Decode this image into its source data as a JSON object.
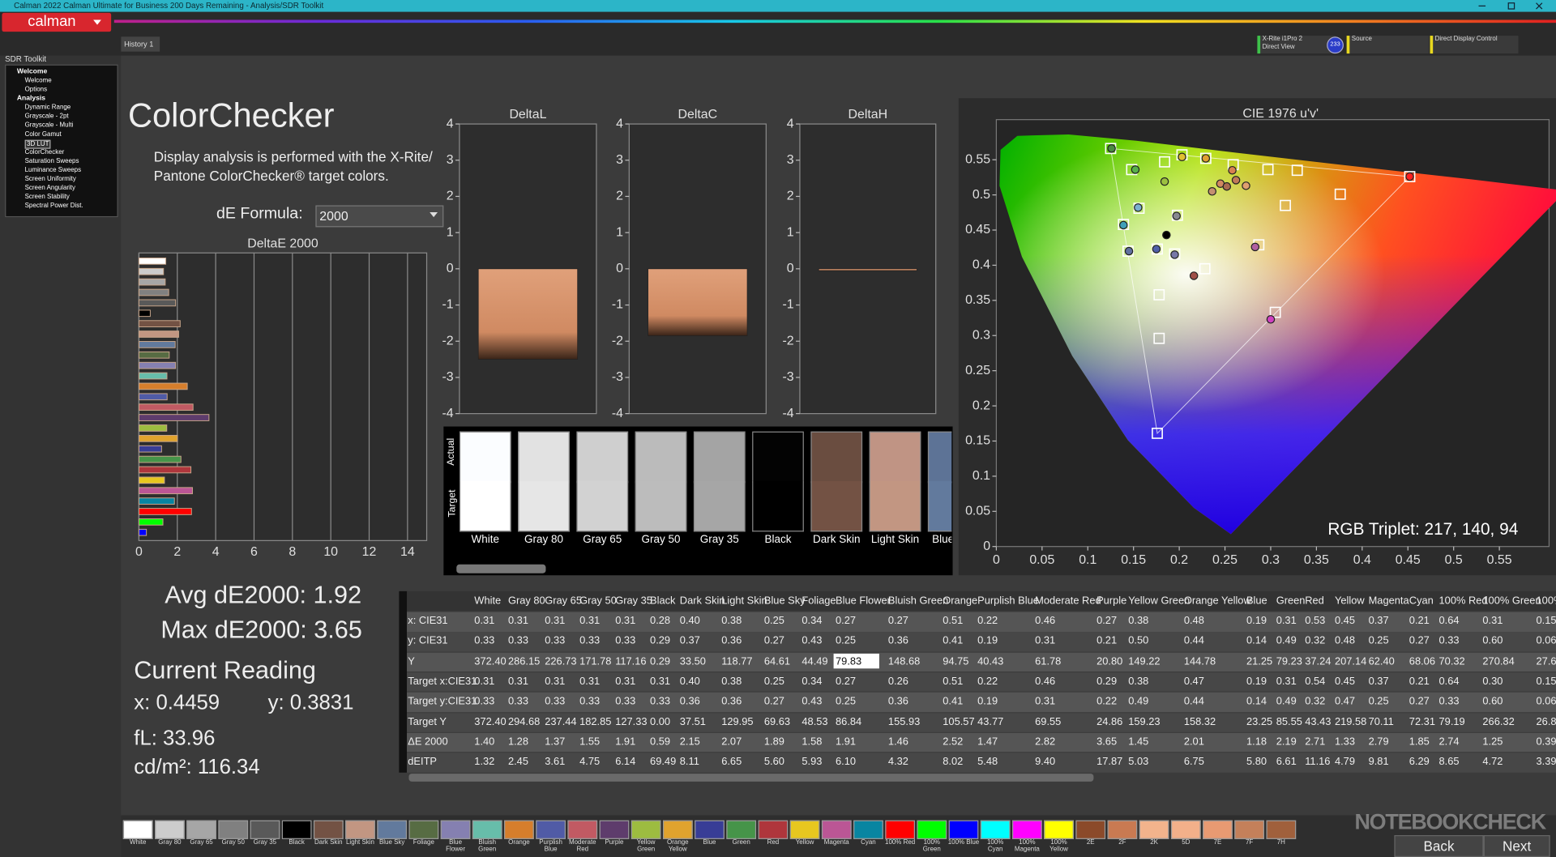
{
  "window": {
    "title": "Calman 2022 Calman Ultimate for Business 200 Days Remaining - Analysis/SDR Toolkit"
  },
  "toolbar": {
    "logo": "calman",
    "tab": "History 1",
    "badge": "233",
    "devices": [
      {
        "name": "X-Rite i1Pro 2",
        "sub": "Direct View",
        "color": "#3ec24a"
      },
      {
        "name": "Source",
        "color": "#e8d820"
      },
      {
        "name": "Direct Display Control",
        "color": "#e8d820"
      }
    ]
  },
  "sidebar": {
    "title": "SDR Toolkit",
    "selected_item": 6,
    "groups": [
      {
        "label": "Welcome",
        "items": [
          "Welcome",
          "Options"
        ]
      },
      {
        "label": "Analysis",
        "items": [
          "Dynamic Range",
          "Grayscale - 2pt",
          "Grayscale - Multi",
          "Color Gamut",
          "3D LUT",
          "ColorChecker",
          "Saturation Sweeps",
          "Luminance Sweeps",
          "Screen Uniformity",
          "Screen Angularity",
          "Screen Stability",
          "Spectral Power Dist."
        ]
      }
    ]
  },
  "page": {
    "heading": "ColorChecker",
    "description": [
      "Display analysis is performed with the X-Rite/",
      "Pantone ColorChecker® target colors."
    ],
    "formula_label": "dE Formula:",
    "formula_value": "2000"
  },
  "stats": {
    "avg": "Avg dE2000: 1.92",
    "max": "Max dE2000: 3.65",
    "current": "Current Reading",
    "x": "x: 0.4459",
    "y": "y: 0.3831",
    "fl": "fL: 33.96",
    "cdm2": "cd/m²: 116.34",
    "rgb": "RGB Triplet: 217, 140, 94"
  },
  "swatch_panel": {
    "actual_label": "Actual",
    "target_label": "Target",
    "swatches": [
      {
        "name": "White",
        "actual": "#fbfdff",
        "target": "#ffffff"
      },
      {
        "name": "Gray 80",
        "actual": "#e2e2e2",
        "target": "#e6e6e6"
      },
      {
        "name": "Gray 65",
        "actual": "#cfcfcf",
        "target": "#d2d2d2"
      },
      {
        "name": "Gray 50",
        "actual": "#bbbbbb",
        "target": "#bcbcbc"
      },
      {
        "name": "Gray 35",
        "actual": "#a4a4a4",
        "target": "#a6a6a6"
      },
      {
        "name": "Black",
        "actual": "#030303",
        "target": "#000000"
      },
      {
        "name": "Dark Skin",
        "actual": "#6a4d40",
        "target": "#735244"
      },
      {
        "name": "Light Skin",
        "actual": "#c09484",
        "target": "#c29682"
      },
      {
        "name": "Blue Sky",
        "actual": "#5d7396",
        "target": "#627a9d"
      }
    ]
  },
  "table": {
    "columns": [
      "White",
      "Gray 80",
      "Gray 65",
      "Gray 50",
      "Gray 35",
      "Black",
      "Dark Skin",
      "Light Skin",
      "Blue Sky",
      "Foliage",
      "Blue Flower",
      "Bluish Green",
      "Orange",
      "Purplish Blue",
      "Moderate Red",
      "Purple",
      "Yellow Green",
      "Orange Yellow",
      "Blue",
      "Green",
      "Red",
      "Yellow",
      "Magenta",
      "Cyan",
      "100% Red",
      "100% Green",
      "100%"
    ],
    "highlight": {
      "row": 2,
      "column": 10
    },
    "rows": [
      {
        "label": "x: CIE31",
        "cells": [
          "0.31",
          "0.31",
          "0.31",
          "0.31",
          "0.31",
          "0.28",
          "0.40",
          "0.38",
          "0.25",
          "0.34",
          "0.27",
          "0.27",
          "0.51",
          "0.22",
          "0.46",
          "0.27",
          "0.38",
          "0.48",
          "0.19",
          "0.31",
          "0.53",
          "0.45",
          "0.37",
          "0.21",
          "0.64",
          "0.31",
          "0.15"
        ]
      },
      {
        "label": "y: CIE31",
        "cells": [
          "0.33",
          "0.33",
          "0.33",
          "0.33",
          "0.33",
          "0.29",
          "0.37",
          "0.36",
          "0.27",
          "0.43",
          "0.25",
          "0.36",
          "0.41",
          "0.19",
          "0.31",
          "0.21",
          "0.50",
          "0.44",
          "0.14",
          "0.49",
          "0.32",
          "0.48",
          "0.25",
          "0.27",
          "0.33",
          "0.60",
          "0.06"
        ]
      },
      {
        "label": "Y",
        "cells": [
          "372.40",
          "286.15",
          "226.73",
          "171.78",
          "117.16",
          "0.29",
          "33.50",
          "118.77",
          "64.61",
          "44.49",
          "79.83",
          "148.68",
          "94.75",
          "40.43",
          "61.78",
          "20.80",
          "149.22",
          "144.78",
          "21.25",
          "79.23",
          "37.24",
          "207.14",
          "62.40",
          "68.06",
          "70.32",
          "270.84",
          "27.6"
        ]
      },
      {
        "label": "Target x:CIE31",
        "cells": [
          "0.31",
          "0.31",
          "0.31",
          "0.31",
          "0.31",
          "0.31",
          "0.40",
          "0.38",
          "0.25",
          "0.34",
          "0.27",
          "0.26",
          "0.51",
          "0.22",
          "0.46",
          "0.29",
          "0.38",
          "0.47",
          "0.19",
          "0.31",
          "0.54",
          "0.45",
          "0.37",
          "0.21",
          "0.64",
          "0.30",
          "0.15"
        ]
      },
      {
        "label": "Target y:CIE31",
        "cells": [
          "0.33",
          "0.33",
          "0.33",
          "0.33",
          "0.33",
          "0.33",
          "0.36",
          "0.36",
          "0.27",
          "0.43",
          "0.25",
          "0.36",
          "0.41",
          "0.19",
          "0.31",
          "0.22",
          "0.49",
          "0.44",
          "0.14",
          "0.49",
          "0.32",
          "0.47",
          "0.25",
          "0.27",
          "0.33",
          "0.60",
          "0.06"
        ]
      },
      {
        "label": "Target Y",
        "cells": [
          "372.40",
          "294.68",
          "237.44",
          "182.85",
          "127.33",
          "0.00",
          "37.51",
          "129.95",
          "69.63",
          "48.53",
          "86.84",
          "155.93",
          "105.57",
          "43.77",
          "69.55",
          "24.86",
          "159.23",
          "158.32",
          "23.25",
          "85.55",
          "43.43",
          "219.58",
          "70.11",
          "72.31",
          "79.19",
          "266.32",
          "26.8"
        ]
      },
      {
        "label": "ΔE 2000",
        "cells": [
          "1.40",
          "1.28",
          "1.37",
          "1.55",
          "1.91",
          "0.59",
          "2.15",
          "2.07",
          "1.89",
          "1.58",
          "1.91",
          "1.46",
          "2.52",
          "1.47",
          "2.82",
          "3.65",
          "1.45",
          "2.01",
          "1.18",
          "2.19",
          "2.71",
          "1.33",
          "2.79",
          "1.85",
          "2.74",
          "1.25",
          "0.39"
        ]
      },
      {
        "label": "dEITP",
        "cells": [
          "1.32",
          "2.45",
          "3.61",
          "4.75",
          "6.14",
          "69.49",
          "8.11",
          "6.65",
          "5.60",
          "5.93",
          "6.10",
          "4.32",
          "8.02",
          "5.48",
          "9.40",
          "17.87",
          "5.03",
          "6.75",
          "5.80",
          "6.61",
          "11.16",
          "4.79",
          "9.81",
          "6.29",
          "8.65",
          "4.72",
          "3.39"
        ]
      }
    ]
  },
  "patch_bar": {
    "patches": [
      {
        "name": "White",
        "color": "#ffffff"
      },
      {
        "name": "Gray 80",
        "color": "#cccccc"
      },
      {
        "name": "Gray 65",
        "color": "#a6a6a6"
      },
      {
        "name": "Gray 50",
        "color": "#808080"
      },
      {
        "name": "Gray 35",
        "color": "#595959"
      },
      {
        "name": "Black",
        "color": "#000000"
      },
      {
        "name": "Dark Skin",
        "color": "#735244"
      },
      {
        "name": "Light Skin",
        "color": "#c29682"
      },
      {
        "name": "Blue Sky",
        "color": "#627a9d"
      },
      {
        "name": "Foliage",
        "color": "#576c43"
      },
      {
        "name": "Blue Flower",
        "color": "#8580b1"
      },
      {
        "name": "Bluish Green",
        "color": "#67bdaa"
      },
      {
        "name": "Orange",
        "color": "#d67e2c"
      },
      {
        "name": "Purplish Blue",
        "color": "#505ba6"
      },
      {
        "name": "Moderate Red",
        "color": "#c15a63"
      },
      {
        "name": "Purple",
        "color": "#5e3c6c"
      },
      {
        "name": "Yellow Green",
        "color": "#9dbc40"
      },
      {
        "name": "Orange Yellow",
        "color": "#e0a32e"
      },
      {
        "name": "Blue",
        "color": "#383d96"
      },
      {
        "name": "Green",
        "color": "#469449"
      },
      {
        "name": "Red",
        "color": "#af363c"
      },
      {
        "name": "Yellow",
        "color": "#e7c71f"
      },
      {
        "name": "Magenta",
        "color": "#bb5695"
      },
      {
        "name": "Cyan",
        "color": "#0885a1"
      },
      {
        "name": "100% Red",
        "color": "#ff0000"
      },
      {
        "name": "100% Green",
        "color": "#00ff00"
      },
      {
        "name": "100% Blue",
        "color": "#0000ff"
      },
      {
        "name": "100% Cyan",
        "color": "#00ffff"
      },
      {
        "name": "100% Magenta",
        "color": "#ff00ff"
      },
      {
        "name": "100% Yellow",
        "color": "#ffff00"
      },
      {
        "name": "2E",
        "color": "#8b4a2a"
      },
      {
        "name": "2F",
        "color": "#c97a52"
      },
      {
        "name": "2K",
        "color": "#f2b38c"
      },
      {
        "name": "5D",
        "color": "#f2b08a"
      },
      {
        "name": "7E",
        "color": "#e89a72"
      },
      {
        "name": "7F",
        "color": "#c4805a"
      },
      {
        "name": "7H",
        "color": "#a0603c"
      }
    ]
  },
  "nav": {
    "back": "Back",
    "next": "Next"
  },
  "watermark": "NOTEBOOKCHECK",
  "chart_data": [
    {
      "type": "bar",
      "horizontal": true,
      "title": "DeltaE 2000",
      "grid": true,
      "values": [
        1.4,
        1.28,
        1.37,
        1.55,
        1.91,
        0.59,
        2.15,
        2.07,
        1.89,
        1.58,
        1.91,
        1.46,
        2.52,
        1.47,
        2.82,
        3.65,
        1.45,
        2.01,
        1.18,
        2.19,
        2.71,
        1.33,
        2.79,
        1.85,
        2.74,
        1.25,
        0.39
      ],
      "colors": [
        "#ffffff",
        "#cccccc",
        "#a6a6a6",
        "#808080",
        "#595959",
        "#000000",
        "#735244",
        "#c29682",
        "#627a9d",
        "#576c43",
        "#8580b1",
        "#67bdaa",
        "#d67e2c",
        "#505ba6",
        "#c15a63",
        "#5e3c6c",
        "#9dbc40",
        "#e0a32e",
        "#383d96",
        "#469449",
        "#af363c",
        "#e7c71f",
        "#bb5695",
        "#0885a1",
        "#ff0000",
        "#00ff00",
        "#0000ff"
      ],
      "xlim": [
        0,
        15
      ],
      "xticks": [
        0,
        2,
        4,
        6,
        8,
        10,
        12,
        14
      ]
    },
    {
      "type": "bar",
      "title": "DeltaL",
      "values": [
        -2.5
      ],
      "color": "#d99a72",
      "ylim": [
        -4,
        4
      ],
      "yticks": [
        -4,
        -3,
        -2,
        -1,
        0,
        1,
        2,
        3,
        4
      ]
    },
    {
      "type": "bar",
      "title": "DeltaC",
      "values": [
        -1.85
      ],
      "color": "#d99a72",
      "ylim": [
        -4,
        4
      ],
      "yticks": [
        -4,
        -3,
        -2,
        -1,
        0,
        1,
        2,
        3,
        4
      ]
    },
    {
      "type": "bar",
      "title": "DeltaH",
      "values": [
        -0.05
      ],
      "color": "#d99a72",
      "ylim": [
        -4,
        4
      ],
      "yticks": [
        -4,
        -3,
        -2,
        -1,
        0,
        1,
        2,
        3,
        4
      ]
    },
    {
      "type": "scatter",
      "title": "CIE 1976 u'v'",
      "xlim": [
        0,
        0.6
      ],
      "ylim": [
        0,
        0.6
      ],
      "xticks": [
        0,
        0.05,
        0.1,
        0.15,
        0.2,
        0.25,
        0.3,
        0.35,
        0.4,
        0.45,
        0.5,
        0.55
      ],
      "yticks": [
        0,
        0.05,
        0.1,
        0.15,
        0.2,
        0.25,
        0.3,
        0.35,
        0.4,
        0.45,
        0.5,
        0.55
      ],
      "series": [
        {
          "marker": "square",
          "color": "#ffffff",
          "x": [
            0.125,
            0.148,
            0.184,
            0.203,
            0.229,
            0.259,
            0.297,
            0.329,
            0.452,
            0.376,
            0.316,
            0.198,
            0.156,
            0.139,
            0.144,
            0.176,
            0.195,
            0.287,
            0.228,
            0.178,
            0.305,
            0.178,
            0.176
          ],
          "y": [
            0.566,
            0.536,
            0.547,
            0.557,
            0.552,
            0.543,
            0.536,
            0.535,
            0.526,
            0.501,
            0.485,
            0.471,
            0.481,
            0.458,
            0.42,
            0.423,
            0.416,
            0.429,
            0.395,
            0.358,
            0.333,
            0.296,
            0.161
          ]
        },
        {
          "marker": "circle",
          "colors": [
            "#4a8c3f",
            "#58b04a",
            "#9cc040",
            "#e0c030",
            "#e0a030",
            "#d88050",
            "#ff2020",
            "#d040c0",
            "#888890",
            "#7ab0d0",
            "#40a0b8",
            "#6070a0",
            "#5060a8",
            "#7878a8",
            "#b060a0",
            "#a05048",
            "#000000",
            "#d08860",
            "#c07a58",
            "#e0a070",
            "#c49070",
            "#a86a50"
          ],
          "x": [
            0.126,
            0.152,
            0.184,
            0.203,
            0.229,
            0.258,
            0.452,
            0.3,
            0.197,
            0.155,
            0.139,
            0.145,
            0.175,
            0.195,
            0.283,
            0.216,
            0.186,
            0.245,
            0.262,
            0.273,
            0.236,
            0.252
          ],
          "y": [
            0.566,
            0.536,
            0.519,
            0.554,
            0.552,
            0.535,
            0.526,
            0.323,
            0.47,
            0.482,
            0.457,
            0.42,
            0.423,
            0.415,
            0.426,
            0.385,
            0.443,
            0.516,
            0.521,
            0.513,
            0.505,
            0.512
          ]
        }
      ]
    }
  ]
}
